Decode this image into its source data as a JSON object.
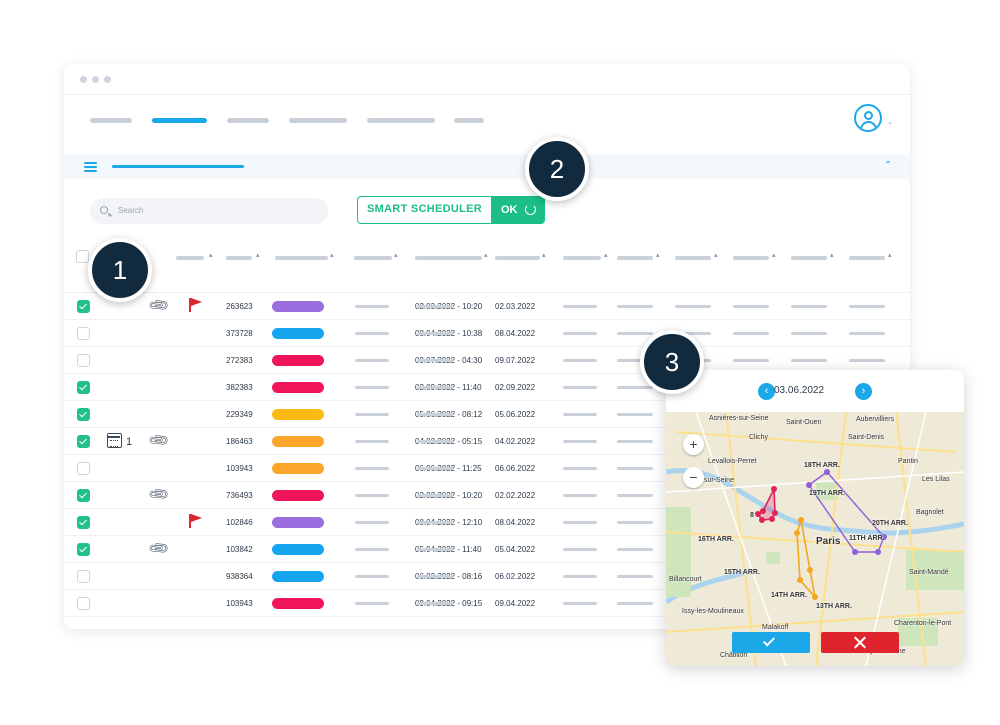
{
  "search": {
    "placeholder": "Search"
  },
  "toolbar": {
    "smart_scheduler_label": "SMART SCHEDULER",
    "ok_label": "OK"
  },
  "badges": [
    "1",
    "2",
    "3"
  ],
  "rows": [
    {
      "checked": true,
      "calendar": false,
      "calendar_count": "",
      "attachment": true,
      "flag": true,
      "id": "263623",
      "color": "#9b6ee0",
      "datetime": "02.03.2022 - 10:20",
      "date": "02.03.2022"
    },
    {
      "checked": false,
      "calendar": false,
      "calendar_count": "",
      "attachment": false,
      "flag": false,
      "id": "373728",
      "color": "#15a4ee",
      "datetime": "08.04.2022 - 10:38",
      "date": "08.04.2022"
    },
    {
      "checked": false,
      "calendar": false,
      "calendar_count": "",
      "attachment": false,
      "flag": false,
      "id": "272383",
      "color": "#f0145a",
      "datetime": "09.07.2022 - 04:30",
      "date": "09.07.2022"
    },
    {
      "checked": true,
      "calendar": false,
      "calendar_count": "",
      "attachment": false,
      "flag": false,
      "id": "382383",
      "color": "#f0145a",
      "datetime": "02.09.2022 - 11:40",
      "date": "02.09.2022"
    },
    {
      "checked": true,
      "calendar": false,
      "calendar_count": "",
      "attachment": false,
      "flag": false,
      "id": "229349",
      "color": "#fbbb14",
      "datetime": "05.06.2022 - 08:12",
      "date": "05.06.2022"
    },
    {
      "checked": true,
      "calendar": true,
      "calendar_count": "1",
      "attachment": true,
      "flag": false,
      "id": "186463",
      "color": "#fba52a",
      "datetime": "04.02.2022 - 05:15",
      "date": "04.02.2022"
    },
    {
      "checked": false,
      "calendar": false,
      "calendar_count": "",
      "attachment": false,
      "flag": false,
      "id": "103943",
      "color": "#fba52a",
      "datetime": "06.06.2022 - 11:25",
      "date": "06.06.2022"
    },
    {
      "checked": true,
      "calendar": false,
      "calendar_count": "",
      "attachment": true,
      "flag": false,
      "id": "736493",
      "color": "#f0145a",
      "datetime": "02.02.2022 - 10:20",
      "date": "02.02.2022"
    },
    {
      "checked": true,
      "calendar": false,
      "calendar_count": "",
      "attachment": false,
      "flag": true,
      "id": "102846",
      "color": "#9b6ee0",
      "datetime": "08.04.2022 - 12:10",
      "date": "08.04.2022"
    },
    {
      "checked": true,
      "calendar": false,
      "calendar_count": "",
      "attachment": true,
      "flag": false,
      "id": "103842",
      "color": "#15a4ee",
      "datetime": "05.04.2022 - 11:40",
      "date": "05.04.2022"
    },
    {
      "checked": false,
      "calendar": false,
      "calendar_count": "",
      "attachment": false,
      "flag": false,
      "id": "938364",
      "color": "#15a4ee",
      "datetime": "06.02.2022 - 08:16",
      "date": "06.02.2022"
    },
    {
      "checked": false,
      "calendar": false,
      "calendar_count": "",
      "attachment": false,
      "flag": false,
      "id": "103943",
      "color": "#f0145a",
      "datetime": "09.04.2022 - 09:15",
      "date": "09.04.2022"
    }
  ],
  "map_panel": {
    "date": "03.06.2022",
    "zoom_in": "+",
    "zoom_out": "−",
    "labels": [
      "Asnières-sur-Seine",
      "Saint-Ouen",
      "Aubervilliers",
      "Clichy",
      "Saint-Denis",
      "Levallois-Perret",
      "Pantin",
      "sur-Seine",
      "18TH ARR.",
      "19TH ARR.",
      "Les Lilas",
      "Bagnolet",
      "20TH ARR.",
      "8",
      "Paris",
      "11TH ARR.",
      "16TH ARR.",
      "Saint-Mandé",
      "15TH ARR.",
      "Billancourt",
      "14TH ARR.",
      "13TH ARR.",
      "Issy-les-Moulineaux",
      "Malakoff",
      "Charenton-le-Pont",
      "Ivry-sur-Seine",
      "Châtillon"
    ],
    "route_colors": [
      "#e0245e",
      "#8e5fd6",
      "#f3a71c"
    ]
  },
  "colors": {
    "accent": "#1aa8e8",
    "success": "#1bbf86",
    "danger": "#e0242e",
    "badge": "#112a3d"
  }
}
